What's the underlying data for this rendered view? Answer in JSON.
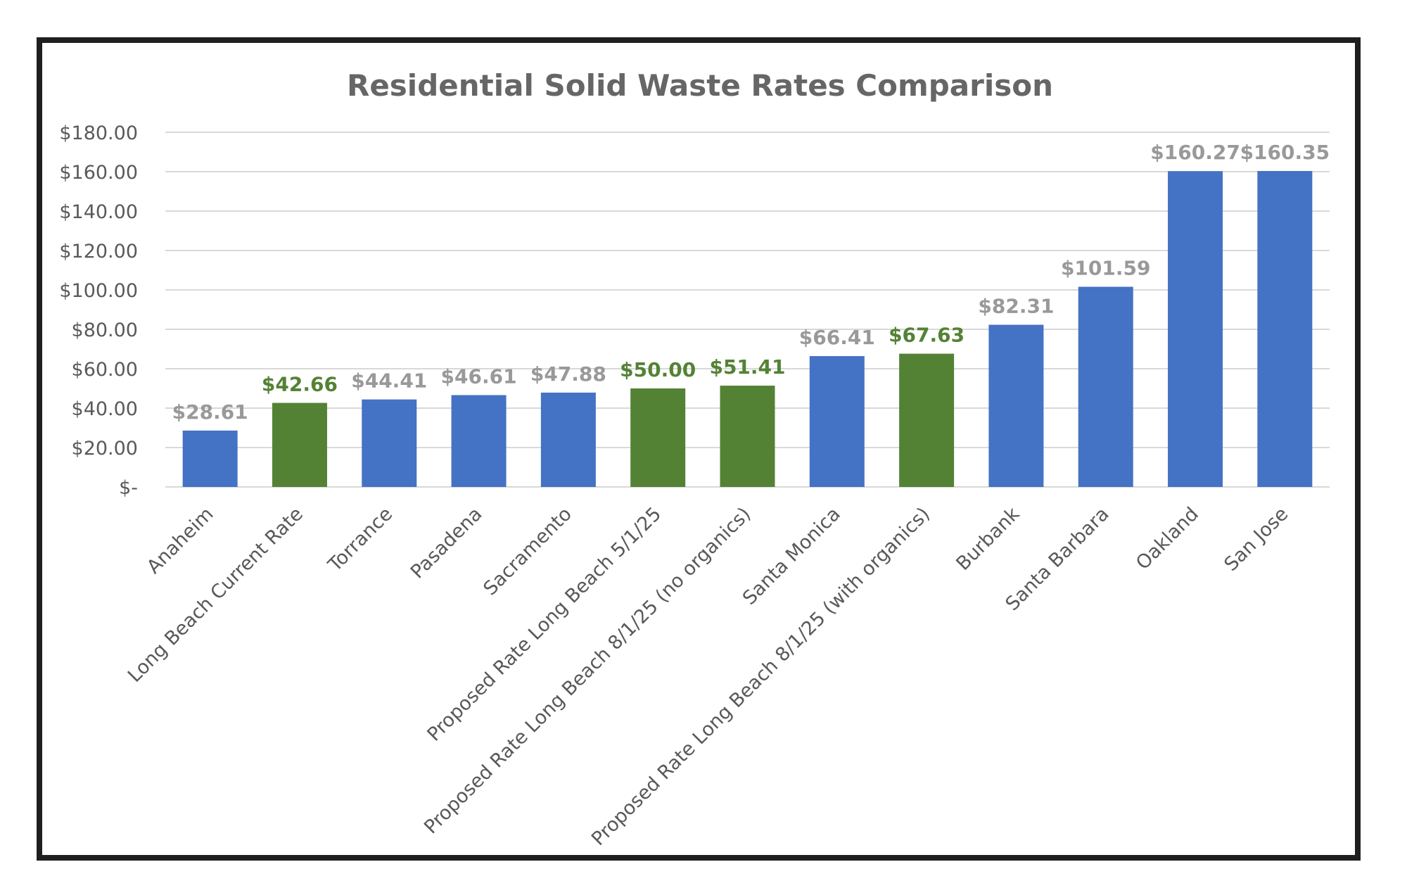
{
  "chart_data": {
    "type": "bar",
    "title": "Residential Solid Waste Rates Comparison",
    "xlabel": "",
    "ylabel": "",
    "ylim": [
      0,
      180
    ],
    "y_ticks": [
      {
        "value": 0,
        "label": "$-"
      },
      {
        "value": 20,
        "label": "$20.00"
      },
      {
        "value": 40,
        "label": "$40.00"
      },
      {
        "value": 60,
        "label": "$60.00"
      },
      {
        "value": 80,
        "label": "$80.00"
      },
      {
        "value": 100,
        "label": "$100.00"
      },
      {
        "value": 120,
        "label": "$120.00"
      },
      {
        "value": 140,
        "label": "$140.00"
      },
      {
        "value": 160,
        "label": "$160.00"
      },
      {
        "value": 180,
        "label": "$180.00"
      }
    ],
    "grid": true,
    "legend": "none",
    "colors": {
      "blue": "#4472c4",
      "green": "#548235",
      "label_gray": "#999999",
      "label_green": "#548235"
    },
    "categories": [
      "Anaheim",
      "Long Beach Current Rate",
      "Torrance",
      "Pasadena",
      "Sacramento",
      "Proposed Rate Long Beach 5/1/25",
      "Proposed Rate Long Beach 8/1/25 (no organics)",
      "Santa Monica",
      "Proposed Rate Long Beach 8/1/25 (with organics)",
      "Burbank",
      "Santa Barbara",
      "Oakland",
      "San Jose"
    ],
    "values": [
      28.61,
      42.66,
      44.41,
      46.61,
      47.88,
      50.0,
      51.41,
      66.41,
      67.63,
      82.31,
      101.59,
      160.27,
      160.35
    ],
    "data_labels": [
      "$28.61",
      "$42.66",
      "$44.41",
      "$46.61",
      "$47.88",
      "$50.00",
      "$51.41",
      "$66.41",
      "$67.63",
      "$82.31",
      "$101.59",
      "$160.27",
      "$160.35"
    ],
    "bar_colors": [
      "blue",
      "green",
      "blue",
      "blue",
      "blue",
      "green",
      "green",
      "blue",
      "green",
      "blue",
      "blue",
      "blue",
      "blue"
    ]
  }
}
